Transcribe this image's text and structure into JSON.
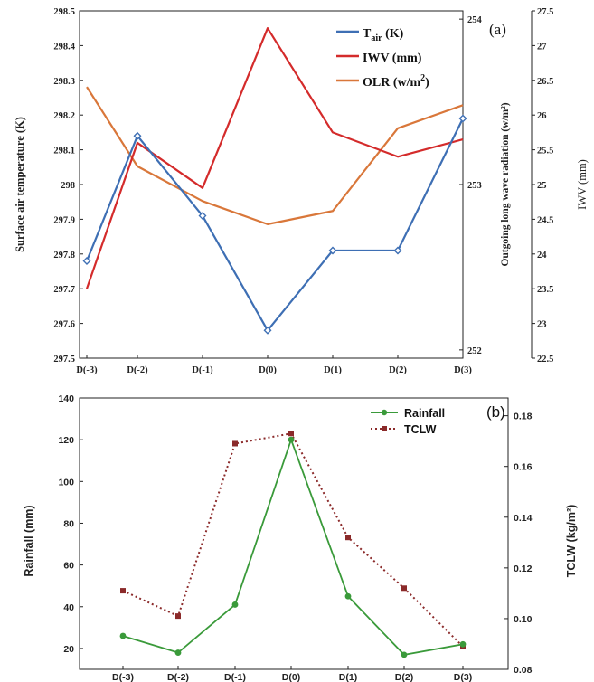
{
  "chart_data": [
    {
      "panel_label": "(a)",
      "type": "line",
      "categories": [
        "D(-3)",
        "D(-2)",
        "D(-1)",
        "D(0)",
        "D(1)",
        "D(2)",
        "D(3)"
      ],
      "axes": {
        "left": {
          "label": "Surface air temperature (K)",
          "ylim": [
            297.5,
            298.5
          ],
          "ticks": [
            "297.5",
            "297.6",
            "297.7",
            "297.8",
            "297.9",
            "298",
            "298.1",
            "298.2",
            "298.3",
            "298.4",
            "298.5"
          ]
        },
        "right_inner": {
          "label": "Outgoing long wave radiation (w/m²)",
          "ylim": [
            251.95,
            254.05
          ],
          "ticks": [
            "252",
            "253",
            "254"
          ]
        },
        "right_outer": {
          "label": "IWV (mm)",
          "ylim": [
            22.5,
            27.5
          ],
          "ticks": [
            "22.5",
            "23",
            "23.5",
            "24",
            "24.5",
            "25",
            "25.5",
            "26",
            "26.5",
            "27",
            "27.5"
          ]
        }
      },
      "series": [
        {
          "name": "T air (K)",
          "legend_main": "T",
          "legend_sub": "air",
          "legend_tail": " (K)",
          "axis": "left",
          "color": "#3e6fb4",
          "marker": "diamond",
          "values": [
            297.78,
            298.14,
            297.91,
            297.58,
            297.81,
            297.81,
            298.19
          ]
        },
        {
          "name": "IWV (mm)",
          "legend_main": "IWV (mm)",
          "axis": "right_outer",
          "color": "#d42b2b",
          "marker": "none",
          "values": [
            23.5,
            25.6,
            24.95,
            27.25,
            25.75,
            25.4,
            25.65
          ]
        },
        {
          "name": "OLR (w/m2)",
          "legend_main": "OLR (w/m",
          "legend_sup": "2",
          "legend_tail": ")",
          "axis": "right_inner",
          "color": "#d9773a",
          "marker": "none",
          "values": [
            253.59,
            253.11,
            252.9,
            252.76,
            252.84,
            253.34,
            253.48
          ]
        }
      ],
      "grid": false,
      "legend": "top-right"
    },
    {
      "panel_label": "(b)",
      "type": "line",
      "categories": [
        "D(-3)",
        "D(-2)",
        "D(-1)",
        "D(0)",
        "D(1)",
        "D(2)",
        "D(3)"
      ],
      "axes": {
        "left": {
          "label": "Rainfall (mm)",
          "ylim": [
            10,
            140
          ],
          "ticks": [
            "20",
            "40",
            "60",
            "80",
            "100",
            "120",
            "140"
          ]
        },
        "right": {
          "label": "TCLW (kg/m²)",
          "ylim": [
            0.08,
            0.187
          ],
          "ticks": [
            "0.08",
            "0.10",
            "0.12",
            "0.14",
            "0.16",
            "0.18"
          ]
        }
      },
      "series": [
        {
          "name": "Rainfall",
          "axis": "left",
          "color": "#3a9a3a",
          "marker": "circle",
          "dash": "solid",
          "values": [
            26,
            18,
            41,
            120,
            45,
            17,
            22
          ]
        },
        {
          "name": "TCLW",
          "axis": "right",
          "color": "#8b2a2a",
          "marker": "square",
          "dash": "dotted",
          "values": [
            0.111,
            0.101,
            0.169,
            0.173,
            0.132,
            0.112,
            0.089
          ]
        }
      ],
      "grid": false,
      "legend": "top-right"
    }
  ]
}
